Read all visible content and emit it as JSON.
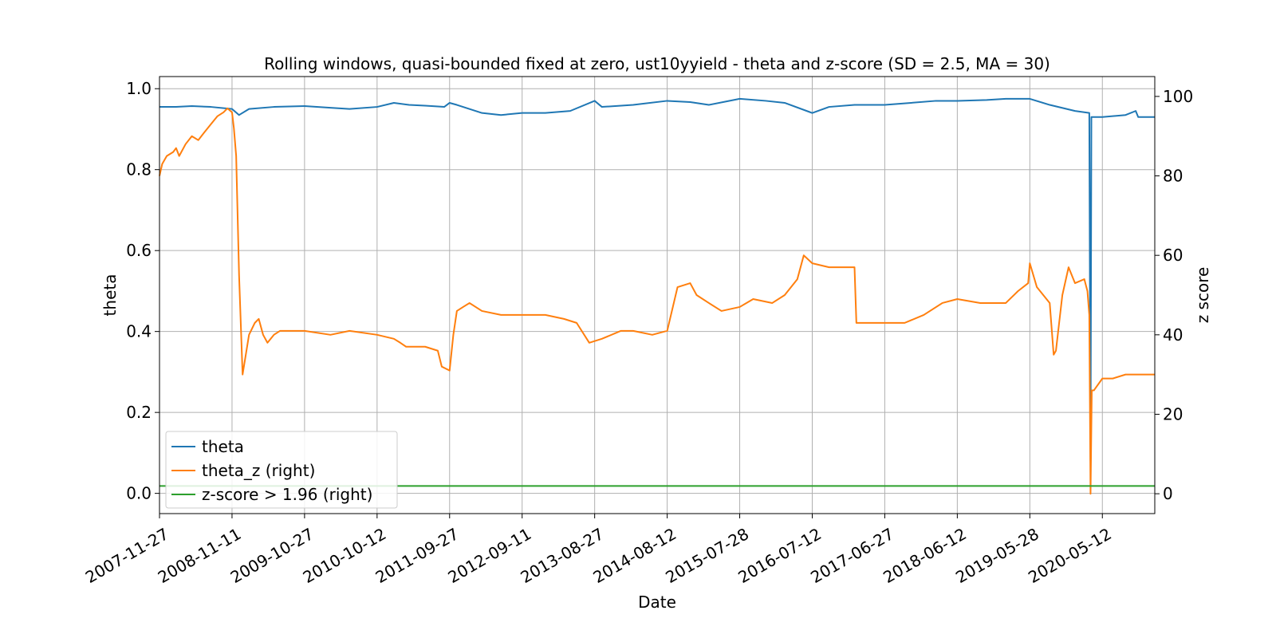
{
  "chart_data": {
    "type": "line",
    "title": "Rolling windows, quasi-bounded fixed at zero, ust10yyield - theta and z-score (SD = 2.5, MA = 30)",
    "xlabel": "Date",
    "ylabel_left": "theta",
    "ylabel_right": "z score",
    "x_tick_labels": [
      "2007-11-27",
      "2008-11-11",
      "2009-10-27",
      "2010-10-12",
      "2011-09-27",
      "2012-09-11",
      "2013-08-27",
      "2014-08-12",
      "2015-07-28",
      "2016-07-12",
      "2017-06-27",
      "2018-06-12",
      "2019-05-28",
      "2020-05-12"
    ],
    "xlim": [
      "2007-11-27",
      "2021-01-20"
    ],
    "ylim_left": [
      -0.05,
      1.03
    ],
    "ylim_right": [
      -5,
      105
    ],
    "y_ticks_left": [
      "0.0",
      "0.2",
      "0.4",
      "0.6",
      "0.8",
      "1.0"
    ],
    "y_ticks_right": [
      "0",
      "20",
      "40",
      "60",
      "80",
      "100"
    ],
    "grid": true,
    "legend_position": "lower-left",
    "colors": {
      "theta": "#1f77b4",
      "theta_z": "#ff7f0e",
      "threshold": "#2ca02c",
      "grid": "#b0b0b0"
    },
    "series": [
      {
        "name": "theta",
        "axis": "left",
        "x": [
          "2007-11-27",
          "2008-02-15",
          "2008-05-01",
          "2008-08-01",
          "2008-11-11",
          "2008-12-15",
          "2009-02-01",
          "2009-06-01",
          "2009-10-27",
          "2010-03-01",
          "2010-06-01",
          "2010-10-12",
          "2011-01-01",
          "2011-03-15",
          "2011-06-01",
          "2011-09-01",
          "2011-09-27",
          "2011-11-01",
          "2012-03-01",
          "2012-06-01",
          "2012-09-11",
          "2013-01-01",
          "2013-05-01",
          "2013-08-27",
          "2013-10-01",
          "2014-03-01",
          "2014-08-12",
          "2014-12-01",
          "2015-03-01",
          "2015-07-28",
          "2015-12-01",
          "2016-03-01",
          "2016-07-12",
          "2016-10-01",
          "2017-02-01",
          "2017-06-27",
          "2017-11-01",
          "2018-03-01",
          "2018-06-12",
          "2018-11-01",
          "2019-02-01",
          "2019-05-28",
          "2019-09-01",
          "2020-01-01",
          "2020-03-10",
          "2020-03-16",
          "2020-03-20",
          "2020-05-12",
          "2020-09-01",
          "2020-10-20",
          "2020-11-01",
          "2021-01-20"
        ],
        "values": [
          0.955,
          0.955,
          0.957,
          0.955,
          0.95,
          0.935,
          0.95,
          0.955,
          0.957,
          0.953,
          0.95,
          0.955,
          0.965,
          0.96,
          0.958,
          0.955,
          0.965,
          0.96,
          0.94,
          0.935,
          0.94,
          0.94,
          0.945,
          0.97,
          0.955,
          0.96,
          0.97,
          0.967,
          0.96,
          0.975,
          0.97,
          0.965,
          0.94,
          0.955,
          0.96,
          0.96,
          0.965,
          0.97,
          0.97,
          0.972,
          0.975,
          0.975,
          0.96,
          0.945,
          0.94,
          0.08,
          0.93,
          0.93,
          0.935,
          0.945,
          0.93,
          0.93
        ]
      },
      {
        "name": "theta_z (right)",
        "axis": "right",
        "x": [
          "2007-11-27",
          "2007-12-10",
          "2008-01-01",
          "2008-02-01",
          "2008-02-15",
          "2008-03-01",
          "2008-04-01",
          "2008-05-01",
          "2008-06-01",
          "2008-07-01",
          "2008-08-01",
          "2008-09-01",
          "2008-10-01",
          "2008-10-20",
          "2008-11-11",
          "2008-11-20",
          "2008-12-01",
          "2008-12-15",
          "2009-01-01",
          "2009-02-01",
          "2009-03-01",
          "2009-03-20",
          "2009-04-10",
          "2009-05-01",
          "2009-06-01",
          "2009-07-01",
          "2009-10-27",
          "2010-03-01",
          "2010-06-01",
          "2010-10-12",
          "2011-01-01",
          "2011-02-01",
          "2011-03-01",
          "2011-06-01",
          "2011-08-01",
          "2011-08-20",
          "2011-09-27",
          "2011-10-15",
          "2011-11-01",
          "2011-12-01",
          "2012-01-01",
          "2012-03-01",
          "2012-06-01",
          "2012-09-11",
          "2013-01-01",
          "2013-04-01",
          "2013-06-01",
          "2013-08-01",
          "2013-10-01",
          "2014-01-01",
          "2014-03-01",
          "2014-06-01",
          "2014-08-12",
          "2014-10-01",
          "2014-12-01",
          "2015-01-01",
          "2015-03-01",
          "2015-05-01",
          "2015-07-28",
          "2015-10-01",
          "2016-01-01",
          "2016-03-01",
          "2016-05-01",
          "2016-06-01",
          "2016-07-12",
          "2016-10-01",
          "2017-02-01",
          "2017-02-10",
          "2017-04-01",
          "2017-06-27",
          "2017-10-01",
          "2018-01-01",
          "2018-04-01",
          "2018-06-12",
          "2018-10-01",
          "2019-01-01",
          "2019-02-01",
          "2019-04-01",
          "2019-05-20",
          "2019-05-28",
          "2019-07-01",
          "2019-09-01",
          "2019-09-20",
          "2019-10-01",
          "2019-11-01",
          "2019-12-01",
          "2020-01-01",
          "2020-02-15",
          "2020-03-01",
          "2020-03-10",
          "2020-03-16",
          "2020-03-22",
          "2020-04-01",
          "2020-05-12",
          "2020-07-01",
          "2020-09-01",
          "2020-11-01",
          "2021-01-20"
        ],
        "values": [
          80,
          83,
          85,
          86,
          87,
          85,
          88,
          90,
          89,
          91,
          93,
          95,
          96,
          97,
          96,
          92,
          85,
          55,
          30,
          40,
          43,
          44,
          40,
          38,
          40,
          41,
          41,
          40,
          41,
          40,
          39,
          38,
          37,
          37,
          36,
          32,
          31,
          40,
          46,
          47,
          48,
          46,
          45,
          45,
          45,
          44,
          43,
          38,
          39,
          41,
          41,
          40,
          41,
          52,
          53,
          50,
          48,
          46,
          47,
          49,
          48,
          50,
          54,
          60,
          58,
          57,
          57,
          43,
          43,
          43,
          43,
          45,
          48,
          49,
          48,
          48,
          48,
          51,
          53,
          58,
          52,
          48,
          35,
          36,
          50,
          57,
          53,
          54,
          51,
          45,
          0,
          26,
          26,
          29,
          29,
          30,
          30,
          30
        ]
      },
      {
        "name": "z-score > 1.96 (right)",
        "axis": "right",
        "x": [
          "2007-11-27",
          "2021-01-20"
        ],
        "values": [
          1.96,
          1.96
        ]
      }
    ]
  }
}
